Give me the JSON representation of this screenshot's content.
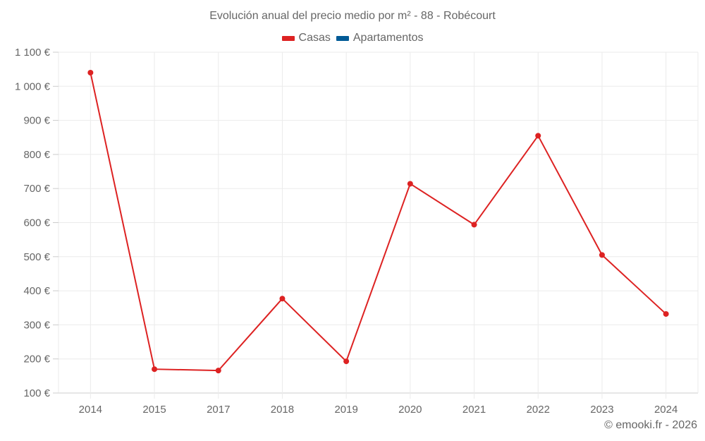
{
  "chart_data": {
    "type": "line",
    "title": "Evolución anual del precio medio por m² - 88 - Robécourt",
    "xlabel": "",
    "ylabel": "",
    "categories": [
      "2014",
      "2015",
      "2017",
      "2018",
      "2019",
      "2020",
      "2021",
      "2022",
      "2023",
      "2024"
    ],
    "series": [
      {
        "name": "Casas",
        "color": "#dd2222",
        "values": [
          1040,
          170,
          166,
          377,
          193,
          714,
          594,
          855,
          505,
          332
        ]
      },
      {
        "name": "Apartamentos",
        "color": "#005a96",
        "values": []
      }
    ],
    "ylim": [
      100,
      1100
    ],
    "yticks": [
      100,
      200,
      300,
      400,
      500,
      600,
      700,
      800,
      900,
      1000,
      1100
    ],
    "ytick_labels": [
      "100 €",
      "200 €",
      "300 €",
      "400 €",
      "500 €",
      "600 €",
      "700 €",
      "800 €",
      "900 €",
      "1 000 €",
      "1 100 €"
    ],
    "grid": true,
    "legend_position": "top"
  },
  "title": "Evolución anual del precio medio por m² - 88 - Robécourt",
  "legend": [
    {
      "label": "Casas",
      "color": "#dd2222"
    },
    {
      "label": "Apartamentos",
      "color": "#005a96"
    }
  ],
  "credit": "© emooki.fr - 2026"
}
